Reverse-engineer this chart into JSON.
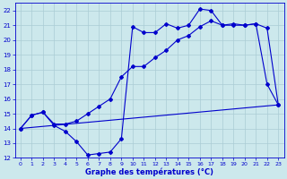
{
  "title": "Graphe des températures (°C)",
  "bg_color": "#cce8ec",
  "grid_color": "#aaccd4",
  "line_color": "#0000cc",
  "xlim": [
    -0.5,
    23.5
  ],
  "ylim": [
    12,
    22.5
  ],
  "xticks": [
    0,
    1,
    2,
    3,
    4,
    5,
    6,
    7,
    8,
    9,
    10,
    11,
    12,
    13,
    14,
    15,
    16,
    17,
    18,
    19,
    20,
    21,
    22,
    23
  ],
  "yticks": [
    12,
    13,
    14,
    15,
    16,
    17,
    18,
    19,
    20,
    21,
    22
  ],
  "curve1_x": [
    0,
    1,
    2,
    3,
    4,
    5,
    6,
    7,
    8,
    9,
    10,
    11,
    12,
    13,
    14,
    15,
    16,
    17,
    18,
    19,
    20,
    21,
    22,
    23
  ],
  "curve1_y": [
    14.0,
    14.9,
    15.1,
    14.2,
    13.8,
    13.1,
    12.2,
    12.3,
    12.4,
    13.3,
    20.9,
    20.5,
    20.5,
    21.1,
    20.8,
    21.0,
    22.1,
    22.0,
    21.0,
    21.1,
    21.0,
    21.1,
    17.0,
    15.6
  ],
  "curve2_x": [
    0,
    1,
    2,
    3,
    4,
    5,
    6,
    7,
    8,
    9,
    10,
    11,
    12,
    13,
    14,
    15,
    16,
    17,
    18,
    19,
    20,
    21,
    22,
    23
  ],
  "curve2_y": [
    14.0,
    14.9,
    15.1,
    14.3,
    14.3,
    14.5,
    15.0,
    15.5,
    16.0,
    17.5,
    18.2,
    18.2,
    18.8,
    19.3,
    20.0,
    20.3,
    20.9,
    21.3,
    21.0,
    21.0,
    21.0,
    21.1,
    20.8,
    15.6
  ],
  "curve3_x": [
    0,
    23
  ],
  "curve3_y": [
    14.0,
    15.6
  ],
  "marker": "D",
  "marker_size": 2.0,
  "linewidth": 0.8
}
